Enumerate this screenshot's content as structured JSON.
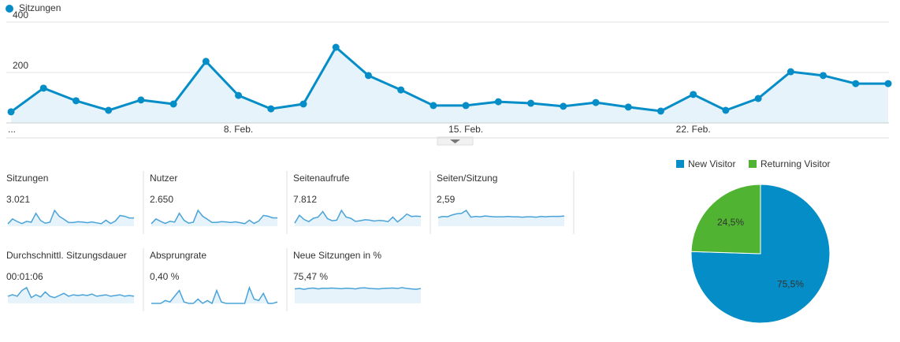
{
  "chart_data": [
    {
      "type": "line",
      "categories": [
        "...",
        null,
        null,
        null,
        null,
        null,
        null,
        "8. Feb.",
        null,
        null,
        null,
        null,
        null,
        null,
        "15. Feb.",
        null,
        null,
        null,
        null,
        null,
        null,
        "22. Feb.",
        null,
        null,
        null,
        null,
        null,
        null
      ],
      "series": [
        {
          "name": "Sitzungen",
          "color": "#058dc7",
          "values": [
            44,
            138,
            88,
            50,
            91,
            75,
            244,
            109,
            56,
            75,
            300,
            188,
            131,
            69,
            69,
            84,
            78,
            66,
            81,
            63,
            47,
            113,
            50,
            97,
            203,
            188,
            156,
            156
          ]
        }
      ],
      "ylim": [
        0,
        400
      ],
      "yticks": [
        200,
        400
      ],
      "grid": true
    },
    {
      "type": "pie",
      "categories": [
        "New Visitor",
        "Returning Visitor"
      ],
      "values": [
        75.5,
        24.5
      ],
      "value_labels": [
        "75,5%",
        "24,5%"
      ],
      "colors": [
        "#058dc7",
        "#50b432"
      ]
    }
  ],
  "metrics": [
    {
      "label": "Sitzungen",
      "value": "3.021",
      "sparkline": [
        44,
        138,
        88,
        50,
        91,
        75,
        244,
        109,
        56,
        75,
        300,
        188,
        131,
        69,
        69,
        84,
        78,
        66,
        81,
        63,
        47,
        113,
        50,
        97,
        203,
        188,
        156,
        156
      ]
    },
    {
      "label": "Nutzer",
      "value": "2.650",
      "sparkline": [
        40,
        120,
        80,
        45,
        82,
        68,
        215,
        98,
        50,
        68,
        262,
        165,
        115,
        62,
        62,
        75,
        70,
        60,
        72,
        57,
        42,
        100,
        45,
        86,
        178,
        165,
        138,
        138
      ]
    },
    {
      "label": "Seitenaufrufe",
      "value": "7.812",
      "sparkline": [
        100,
        360,
        220,
        150,
        260,
        300,
        480,
        250,
        180,
        200,
        520,
        300,
        260,
        160,
        180,
        210,
        200,
        170,
        190,
        180,
        150,
        300,
        140,
        260,
        400,
        320,
        330,
        320
      ]
    },
    {
      "label": "Seiten/Sitzung",
      "value": "2,59",
      "sparkline": [
        2.3,
        2.6,
        2.5,
        3.0,
        3.3,
        3.4,
        4.2,
        2.4,
        2.6,
        2.5,
        2.7,
        2.6,
        2.5,
        2.5,
        2.5,
        2.6,
        2.5,
        2.5,
        2.4,
        2.5,
        2.5,
        2.4,
        2.6,
        2.5,
        2.6,
        2.6,
        2.6,
        2.7
      ]
    },
    {
      "label": "Durchschnittl. Sitzungsdauer",
      "value": "00:01:06",
      "sparkline": [
        50,
        60,
        50,
        90,
        110,
        40,
        60,
        45,
        80,
        50,
        40,
        55,
        70,
        50,
        60,
        55,
        60,
        55,
        65,
        50,
        55,
        60,
        50,
        55,
        60,
        50,
        55,
        50
      ]
    },
    {
      "label": "Absprungrate",
      "value": "0,40 %",
      "sparkline": [
        0,
        0,
        0,
        0.2,
        0.1,
        0.5,
        0.9,
        0.1,
        0,
        0,
        0.3,
        0,
        0.2,
        0,
        0.9,
        0.1,
        0,
        0,
        0,
        0,
        0,
        1.1,
        0.3,
        0.2,
        0.7,
        0,
        0,
        0.1
      ]
    },
    {
      "label": "Neue Sitzungen in %",
      "value": "75,47 %",
      "sparkline": [
        70,
        72,
        68,
        72,
        74,
        70,
        73,
        72,
        74,
        72,
        71,
        73,
        72,
        70,
        74,
        75,
        72,
        71,
        70,
        72,
        73,
        74,
        72,
        76,
        72,
        70,
        68,
        72
      ]
    }
  ]
}
